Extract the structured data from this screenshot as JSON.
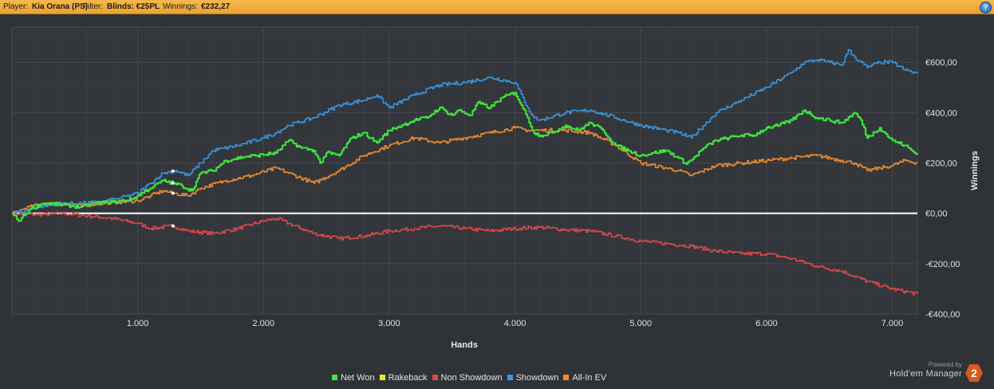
{
  "header": {
    "player_label": "Player:",
    "player_value": "Kia Orana (PS)",
    "filter_label": "Filter:",
    "filter_value": "Blinds: €25PL",
    "winnings_label": "Winnings:",
    "winnings_value": "€232,27",
    "help_label": "?"
  },
  "footer": {
    "powered_by": "Powered by",
    "brand_name": "Hold'em Manager",
    "brand_badge": "2"
  },
  "colors": {
    "background": "#2f3337",
    "grid": "#45494d",
    "net_won": "#3fe43f",
    "rakeback": "#e8e83a",
    "non_showdown": "#e04848",
    "showdown": "#3a96e0",
    "all_in_ev": "#f08a30",
    "zero_line": "#ffffff"
  },
  "chart_data": {
    "type": "line",
    "xlabel": "Hands",
    "ylabel": "Winnings",
    "xlim": [
      0,
      7200
    ],
    "ylim": [
      -400,
      740
    ],
    "x_ticks": [
      {
        "value": 1000,
        "label": "1.000"
      },
      {
        "value": 2000,
        "label": "2.000"
      },
      {
        "value": 3000,
        "label": "3.000"
      },
      {
        "value": 4000,
        "label": "4.000"
      },
      {
        "value": 5000,
        "label": "5.000"
      },
      {
        "value": 6000,
        "label": "6.000"
      },
      {
        "value": 7000,
        "label": "7.000"
      }
    ],
    "y_ticks": [
      {
        "value": 600,
        "label": "€600,00"
      },
      {
        "value": 400,
        "label": "€400,00"
      },
      {
        "value": 200,
        "label": "€200,00"
      },
      {
        "value": 0,
        "label": "€0,00"
      },
      {
        "value": -200,
        "label": "-€200,00"
      },
      {
        "value": -400,
        "label": "-€400,00"
      }
    ],
    "grid": true,
    "legend_position": "bottom",
    "marker_x": 1280,
    "series": [
      {
        "name": "Net Won",
        "color": "#3fe43f",
        "x": [
          0,
          50,
          150,
          250,
          400,
          550,
          650,
          800,
          950,
          1100,
          1200,
          1280,
          1350,
          1430,
          1500,
          1600,
          1700,
          1850,
          1950,
          2100,
          2200,
          2300,
          2400,
          2450,
          2500,
          2600,
          2700,
          2800,
          2900,
          3000,
          3100,
          3200,
          3300,
          3400,
          3500,
          3550,
          3650,
          3700,
          3800,
          3900,
          4000,
          4050,
          4100,
          4150,
          4200,
          4300,
          4400,
          4500,
          4600,
          4700,
          4800,
          4900,
          5000,
          5100,
          5200,
          5300,
          5350,
          5400,
          5500,
          5600,
          5700,
          5800,
          5900,
          6000,
          6100,
          6200,
          6300,
          6400,
          6500,
          6600,
          6700,
          6750,
          6800,
          6900,
          7000,
          7100,
          7200
        ],
        "values": [
          0,
          -30,
          20,
          40,
          35,
          25,
          40,
          45,
          55,
          100,
          130,
          120,
          110,
          90,
          160,
          170,
          210,
          225,
          230,
          240,
          290,
          260,
          250,
          200,
          240,
          230,
          300,
          320,
          280,
          330,
          350,
          370,
          380,
          420,
          390,
          410,
          390,
          440,
          420,
          460,
          480,
          430,
          380,
          320,
          310,
          320,
          350,
          330,
          360,
          330,
          270,
          250,
          230,
          240,
          250,
          220,
          200,
          210,
          260,
          290,
          300,
          310,
          310,
          340,
          350,
          370,
          410,
          380,
          370,
          360,
          400,
          370,
          300,
          340,
          290,
          270,
          232
        ]
      },
      {
        "name": "Rakeback",
        "color": "#e8e83a",
        "x": [],
        "values": []
      },
      {
        "name": "Non Showdown",
        "color": "#e04848",
        "x": [
          0,
          200,
          400,
          600,
          800,
          1000,
          1100,
          1280,
          1400,
          1600,
          1800,
          2000,
          2100,
          2200,
          2400,
          2600,
          2800,
          3000,
          3200,
          3400,
          3600,
          3800,
          4000,
          4200,
          4400,
          4600,
          4800,
          5000,
          5200,
          5400,
          5600,
          5800,
          6000,
          6200,
          6400,
          6600,
          6800,
          7000,
          7200
        ],
        "values": [
          0,
          -5,
          0,
          -10,
          -20,
          -40,
          -60,
          -50,
          -70,
          -80,
          -60,
          -30,
          -20,
          -40,
          -80,
          -100,
          -90,
          -70,
          -60,
          -50,
          -60,
          -70,
          -60,
          -55,
          -65,
          -70,
          -90,
          -110,
          -120,
          -130,
          -150,
          -160,
          -160,
          -180,
          -210,
          -230,
          -270,
          -300,
          -320
        ]
      },
      {
        "name": "Showdown",
        "color": "#3a96e0",
        "x": [
          0,
          100,
          250,
          400,
          550,
          700,
          850,
          1000,
          1100,
          1200,
          1300,
          1400,
          1500,
          1600,
          1800,
          2000,
          2100,
          2200,
          2400,
          2600,
          2800,
          2900,
          3000,
          3200,
          3400,
          3600,
          3800,
          4000,
          4100,
          4150,
          4200,
          4400,
          4600,
          4800,
          5000,
          5200,
          5300,
          5400,
          5600,
          5800,
          6000,
          6200,
          6300,
          6400,
          6500,
          6600,
          6650,
          6700,
          6800,
          6900,
          7000,
          7100,
          7200
        ],
        "values": [
          0,
          10,
          30,
          40,
          40,
          45,
          60,
          80,
          120,
          160,
          170,
          150,
          200,
          250,
          270,
          300,
          320,
          350,
          380,
          430,
          450,
          470,
          420,
          470,
          510,
          520,
          540,
          520,
          420,
          380,
          370,
          400,
          410,
          380,
          350,
          330,
          320,
          300,
          400,
          450,
          500,
          560,
          600,
          610,
          600,
          590,
          650,
          620,
          580,
          600,
          600,
          570,
          555
        ]
      },
      {
        "name": "All-In EV",
        "color": "#f08a30",
        "x": [
          0,
          100,
          250,
          400,
          550,
          700,
          850,
          1000,
          1100,
          1200,
          1280,
          1400,
          1500,
          1700,
          1900,
          2100,
          2200,
          2400,
          2600,
          2800,
          3000,
          3200,
          3400,
          3600,
          3800,
          4000,
          4100,
          4200,
          4400,
          4600,
          4800,
          5000,
          5200,
          5300,
          5400,
          5600,
          5800,
          6000,
          6200,
          6400,
          6600,
          6700,
          6800,
          6900,
          7000,
          7100,
          7200
        ],
        "values": [
          0,
          20,
          40,
          35,
          30,
          40,
          45,
          50,
          70,
          90,
          80,
          70,
          100,
          130,
          150,
          180,
          160,
          120,
          170,
          230,
          270,
          300,
          280,
          300,
          320,
          340,
          330,
          330,
          330,
          320,
          270,
          200,
          180,
          170,
          150,
          190,
          200,
          210,
          220,
          230,
          210,
          200,
          170,
          180,
          190,
          210,
          200
        ]
      }
    ]
  }
}
